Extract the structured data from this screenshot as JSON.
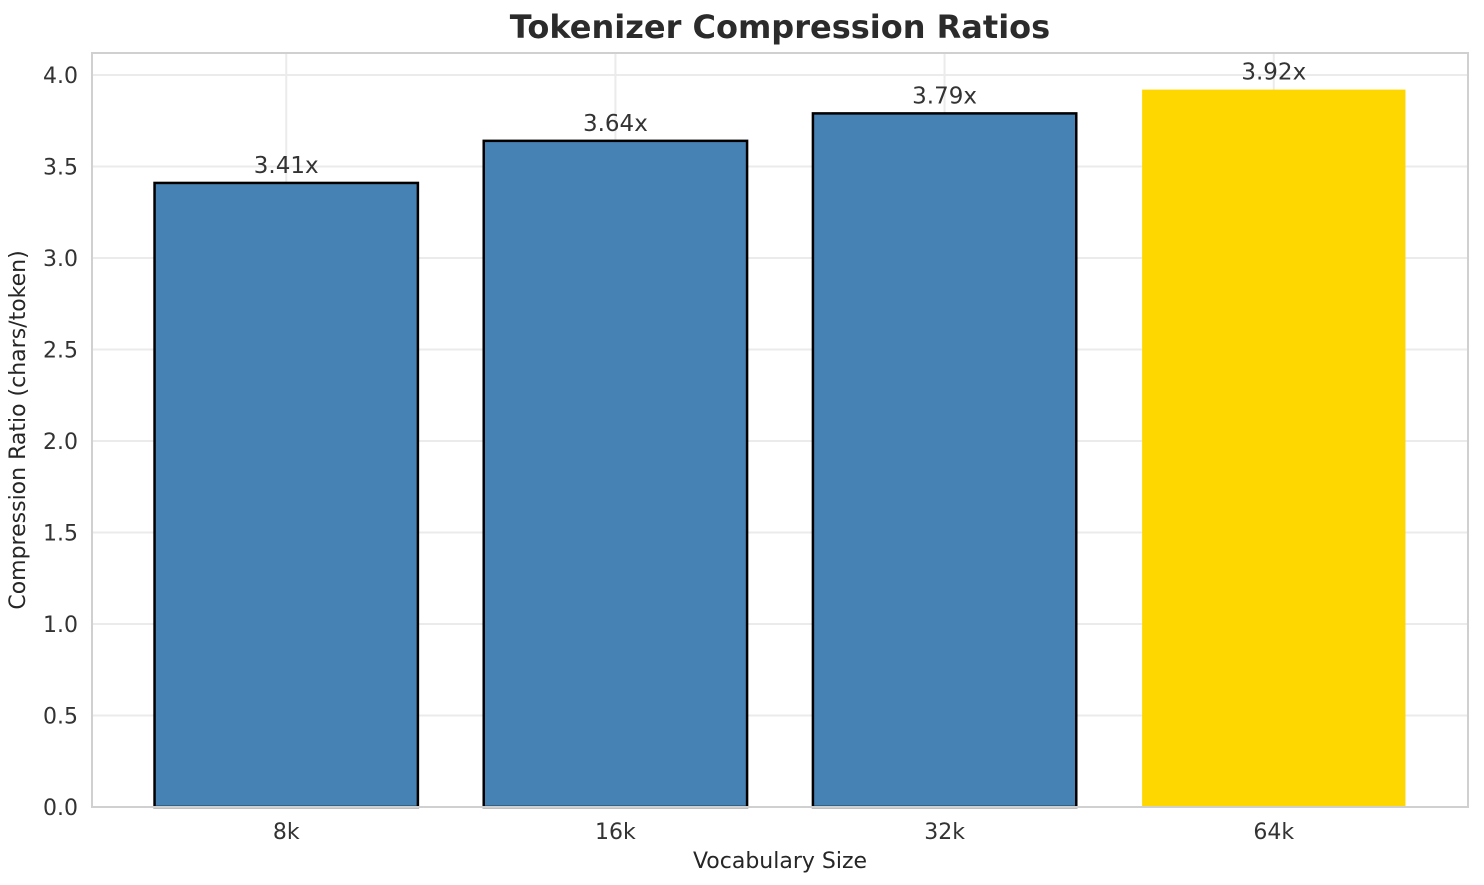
{
  "chart_data": {
    "type": "bar",
    "title": "Tokenizer Compression Ratios",
    "xlabel": "Vocabulary Size",
    "ylabel": "Compression Ratio (chars/token)",
    "categories": [
      "8k",
      "16k",
      "32k",
      "64k"
    ],
    "values": [
      3.41,
      3.64,
      3.79,
      3.92
    ],
    "bar_labels": [
      "3.41x",
      "3.64x",
      "3.79x",
      "3.92x"
    ],
    "highlight_index": 3,
    "ylim": [
      0,
      4.12
    ],
    "yticks": [
      0.0,
      0.5,
      1.0,
      1.5,
      2.0,
      2.5,
      3.0,
      3.5,
      4.0
    ],
    "ytick_labels": [
      "0.0",
      "0.5",
      "1.0",
      "1.5",
      "2.0",
      "2.5",
      "3.0",
      "3.5",
      "4.0"
    ],
    "grid": true,
    "legend_position": "none",
    "colors": {
      "bar_default": "#4682B4",
      "bar_highlight": "#FFD700",
      "bar_edge_default": "#000000",
      "bar_edge_highlight": "none",
      "grid_line": "#EBEBEB",
      "spine": "#D0D0D0",
      "title_text": "#2b2b2b",
      "tick_text": "#333333"
    }
  }
}
